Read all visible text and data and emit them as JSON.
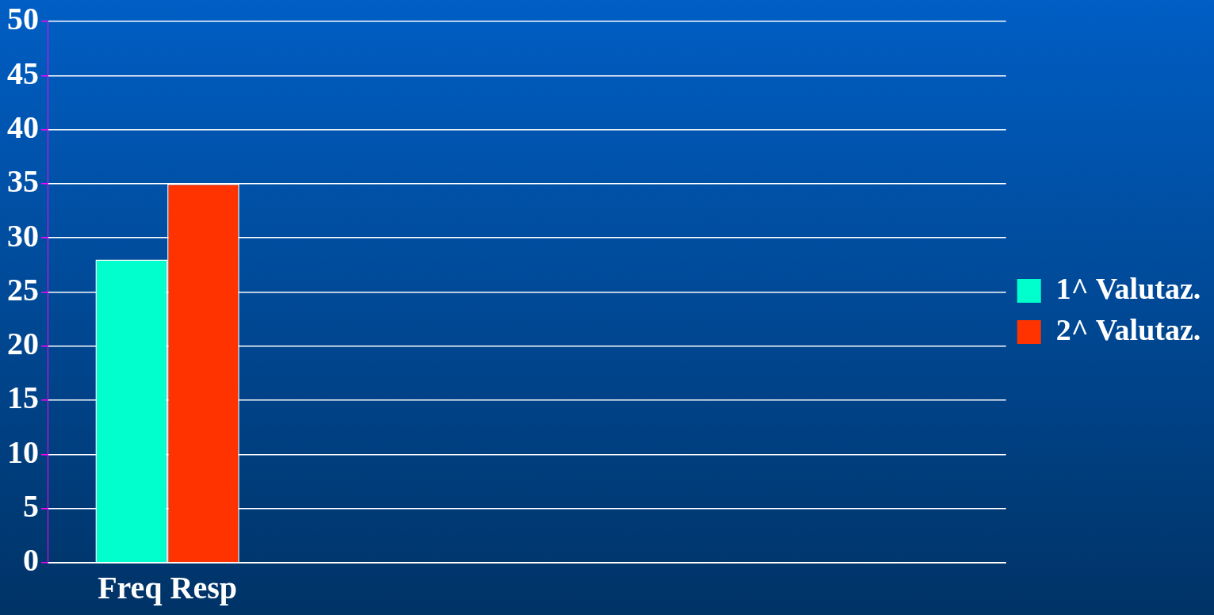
{
  "chart_data": {
    "type": "bar",
    "categories": [
      "Freq Resp",
      null,
      null,
      null
    ],
    "series": [
      {
        "name": "1^ Valutaz.",
        "color": "#00ffcc",
        "values": [
          28,
          null,
          null,
          null
        ]
      },
      {
        "name": "2^ Valutaz.",
        "color": "#ff3300",
        "values": [
          35,
          null,
          null,
          null
        ]
      }
    ],
    "ylim": [
      0,
      50
    ],
    "yticks": [
      0,
      5,
      10,
      15,
      20,
      25,
      30,
      35,
      40,
      45,
      50
    ],
    "grid": "y",
    "legend": "right"
  }
}
